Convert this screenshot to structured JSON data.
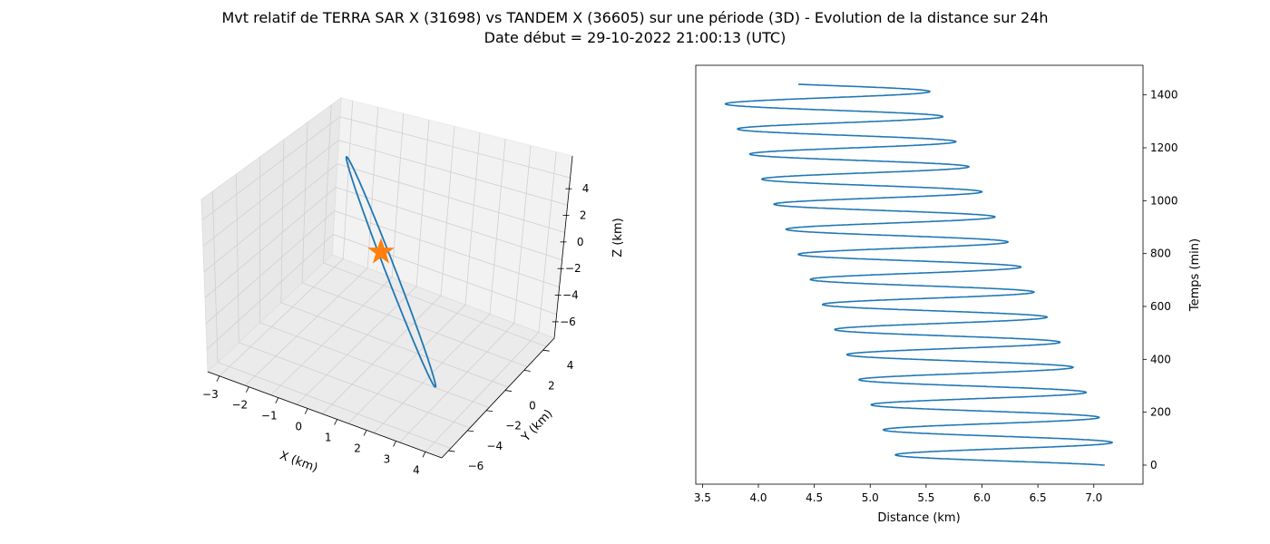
{
  "figure": {
    "title": "Mvt relatif de TERRA SAR X (31698) vs TANDEM X (36605) sur une période (3D) - Evolution de la distance sur 24h",
    "subtitle": "Date début = 29-10-2022 21:00:13 (UTC)"
  },
  "colors": {
    "line": "#1f77b4",
    "star": "#ff7f0e",
    "pane": "#f2f2f2",
    "grid": "#d0d0d0"
  },
  "chart_data": [
    {
      "type": "line",
      "projection": "3d",
      "xlabel": "X (km)",
      "ylabel": "Y (km)",
      "zlabel": "Z (km)",
      "xticks": [
        "−3",
        "−2",
        "−1",
        "0",
        "1",
        "2",
        "3",
        "4"
      ],
      "yticks": [
        "−6",
        "−4",
        "−2",
        "0",
        "2",
        "4"
      ],
      "zticks": [
        "4",
        "2",
        "0",
        "−2",
        "−4",
        "−6"
      ],
      "grid": true,
      "marker": {
        "symbol": "star",
        "x": 0,
        "y": 0,
        "z": 0
      },
      "orbit": {
        "x": [
          -2.8,
          4.4
        ],
        "y": [
          -5.5,
          4.5
        ],
        "z": [
          -6.6,
          4.9
        ]
      }
    },
    {
      "type": "line",
      "xlabel": "Distance (km)",
      "ylabel": "Temps (min)",
      "xticks": [
        "3.5",
        "4.0",
        "4.5",
        "5.0",
        "5.5",
        "6.0",
        "6.5",
        "7.0"
      ],
      "yticks": [
        "0",
        "200",
        "400",
        "600",
        "800",
        "1000",
        "1200",
        "1400"
      ],
      "xlim": [
        3.44,
        7.44
      ],
      "ylim": [
        -72,
        1512
      ],
      "ytick_position": "right",
      "series": [
        {
          "period_min": 94.8,
          "phase_start_min": -9,
          "t_start": 0,
          "t_end": 1440,
          "mid_start": 6.27,
          "mid_end": 4.56,
          "amp_start": 1.0,
          "amp_end": 0.94
        }
      ]
    }
  ]
}
